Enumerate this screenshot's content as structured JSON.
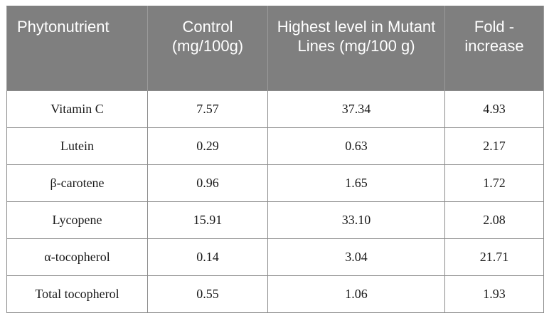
{
  "table": {
    "headers": [
      "Phytonutrient",
      "Control (mg/100g)",
      "Highest level in Mutant Lines (mg/100 g)",
      "Fold - increase"
    ],
    "rows": [
      [
        "Vitamin C",
        "7.57",
        "37.34",
        "4.93"
      ],
      [
        "Lutein",
        "0.29",
        "0.63",
        "2.17"
      ],
      [
        "β-carotene",
        "0.96",
        "1.65",
        "1.72"
      ],
      [
        "Lycopene",
        "15.91",
        "33.10",
        "2.08"
      ],
      [
        "α-tocopherol",
        "0.14",
        "3.04",
        "21.71"
      ],
      [
        "Total tocopherol",
        "0.55",
        "1.06",
        "1.93"
      ]
    ]
  },
  "colors": {
    "header_bg": "#7f7f7f",
    "header_text": "#ffffff",
    "border": "#8c8c8c"
  }
}
